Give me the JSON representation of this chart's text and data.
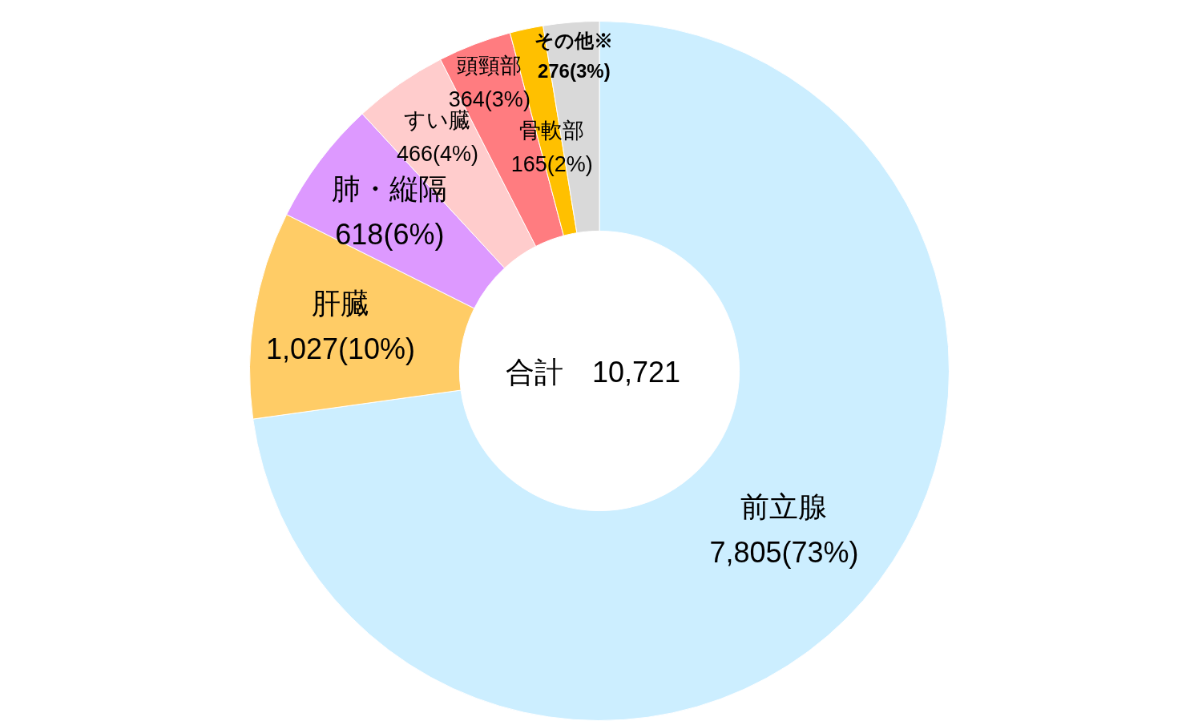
{
  "chart_data": {
    "type": "donut",
    "categories": [
      "前立腺",
      "肝臓",
      "肺・縦隔",
      "すい臓",
      "頭頸部",
      "骨軟部",
      "その他※"
    ],
    "values": [
      7805,
      1027,
      618,
      466,
      364,
      165,
      276
    ],
    "colors": [
      "#cceeff",
      "#ffcc66",
      "#dd99ff",
      "#ffcccc",
      "#ff7c80",
      "#ffc000",
      "#d9d9d9"
    ],
    "value_labels": [
      "7,805(73%)",
      "1,027(10%)",
      "618(6%)",
      "466(4%)",
      "364(3%)",
      "165(2%)",
      "276(3%)"
    ],
    "annotations": [
      "合計　10,721"
    ]
  }
}
